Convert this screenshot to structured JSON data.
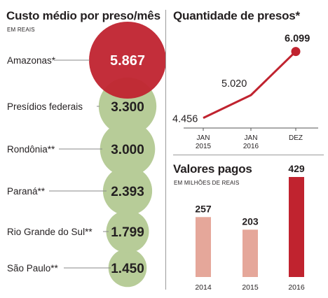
{
  "left": {
    "title": "Custo médio por preso/mês",
    "subtitle": "EM REAIS"
  },
  "right_top": {
    "title": "Quantidade de presos*"
  },
  "right_bottom": {
    "title": "Valores pagos",
    "subtitle": "EM MILHÕES DE REAIS"
  },
  "colors": {
    "red": "#c0232f",
    "green": "#b7cc98",
    "pink": "#e5a79a",
    "text": "#231f20",
    "gray_line": "#8a8a8a"
  },
  "chart_data": [
    {
      "type": "bubble",
      "title": "Custo médio por preso/mês",
      "subtitle": "EM REAIS",
      "categories": [
        "Amazonas*",
        "Presídios federais",
        "Rondônia**",
        "Paraná**",
        "Rio Grande do Sul**",
        "São Paulo**"
      ],
      "values": [
        5867,
        3300,
        3000,
        2393,
        1799,
        1450
      ],
      "labels": [
        "5.867",
        "3.300",
        "3.000",
        "2.393",
        "1.799",
        "1.450"
      ],
      "highlight": "Amazonas*"
    },
    {
      "type": "line",
      "title": "Quantidade de presos*",
      "x": [
        "JAN 2015",
        "JAN 2016",
        "DEZ 2016"
      ],
      "x_lines": [
        [
          "JAN",
          "2015"
        ],
        [
          "JAN",
          "2016"
        ],
        [
          "DEZ",
          ""
        ]
      ],
      "values": [
        4456,
        5020,
        6099
      ],
      "labels": [
        "4.456",
        "5.020",
        "6.099"
      ]
    },
    {
      "type": "bar",
      "title": "Valores pagos",
      "subtitle": "EM MILHÕES DE REAIS",
      "categories": [
        "2014",
        "2015",
        "2016"
      ],
      "values": [
        257,
        203,
        429
      ],
      "labels": [
        "257",
        "203",
        "429"
      ],
      "highlight": "2016"
    }
  ]
}
